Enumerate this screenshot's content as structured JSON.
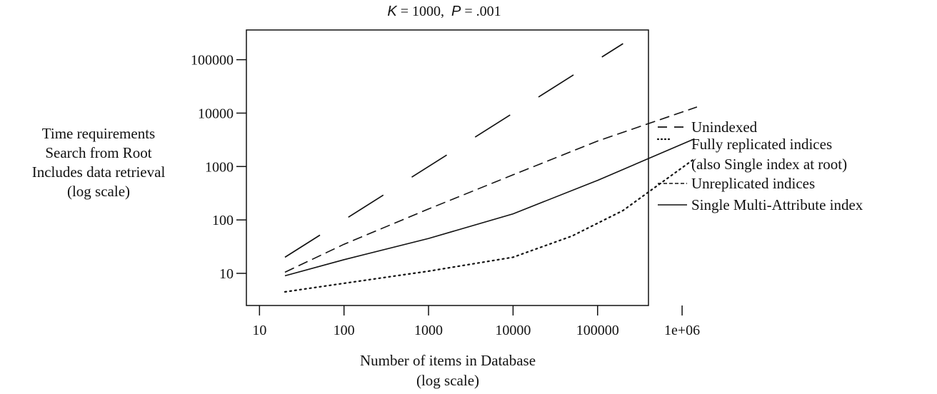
{
  "chart_data": {
    "type": "line",
    "title": {
      "parts": [
        {
          "text": "K",
          "italic": true
        },
        {
          "text": " = 1000,  ",
          "italic": false
        },
        {
          "text": "P",
          "italic": true
        },
        {
          "text": " = .001",
          "italic": false
        }
      ]
    },
    "xlabel": [
      "Number of items in Database",
      "(log scale)"
    ],
    "ylabel": [
      "Time requirements",
      "Search from Root",
      "Includes data retrieval",
      "(log scale)"
    ],
    "x_scale": "log",
    "y_scale": "log",
    "xlim": [
      7,
      400000
    ],
    "ylim": [
      2.5,
      360000
    ],
    "x_ticks": [
      {
        "value": 10,
        "label": "10"
      },
      {
        "value": 100,
        "label": "100"
      },
      {
        "value": 1000,
        "label": "1000"
      },
      {
        "value": 10000,
        "label": "10000"
      },
      {
        "value": 100000,
        "label": "100000"
      },
      {
        "value": 1000000,
        "label": "1e+06"
      }
    ],
    "y_ticks": [
      {
        "value": 10,
        "label": "10"
      },
      {
        "value": 100,
        "label": "100"
      },
      {
        "value": 1000,
        "label": "1000"
      },
      {
        "value": 10000,
        "label": "10000"
      },
      {
        "value": 100000,
        "label": "100000"
      }
    ],
    "grid": false,
    "legend_position": "right",
    "series": [
      {
        "name": "Unindexed",
        "dash": "long",
        "x": [
          20,
          200000
        ],
        "y": [
          20,
          200000
        ]
      },
      {
        "name": "Unreplicated indices",
        "dash": "short",
        "x": [
          20,
          100,
          1000,
          10000,
          100000,
          1500000
        ],
        "y": [
          10.5,
          35,
          160,
          700,
          3000,
          13000
        ]
      },
      {
        "name": "Single Multi-Attribute index",
        "dash": "solid",
        "x": [
          20,
          100,
          1000,
          10000,
          100000,
          1400000
        ],
        "y": [
          9,
          18,
          45,
          130,
          550,
          3300
        ]
      },
      {
        "name": "Fully replicated indices\n(also Single index at root)",
        "legend_lines": [
          "Fully replicated indices",
          "(also Single index at root)"
        ],
        "dash": "dotted",
        "x": [
          20,
          100,
          1000,
          10000,
          50000,
          200000,
          1400000
        ],
        "y": [
          4.5,
          6.5,
          11,
          20,
          50,
          150,
          1400
        ]
      }
    ],
    "legend_order": [
      "Unindexed",
      "Fully replicated indices\n(also Single index at root)",
      "Unreplicated indices",
      "Single Multi-Attribute index"
    ]
  }
}
